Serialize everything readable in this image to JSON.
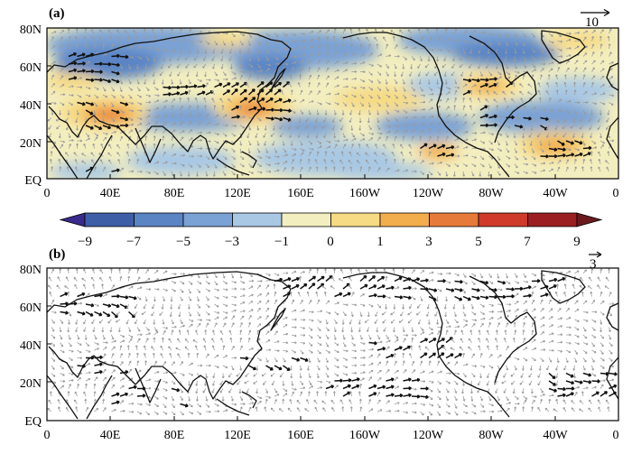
{
  "panels": [
    {
      "id": "a",
      "label": "(a)",
      "ref_vector": "10",
      "filled": true,
      "y_ticks": [
        "80N",
        "60N",
        "40N",
        "20N",
        "EQ"
      ],
      "x_ticks": [
        "0",
        "40E",
        "80E",
        "120E",
        "160E",
        "160W",
        "120W",
        "80W",
        "40W",
        "0"
      ]
    },
    {
      "id": "b",
      "label": "(b)",
      "ref_vector": "3",
      "filled": false,
      "y_ticks": [
        "80N",
        "60N",
        "40N",
        "20N",
        "EQ"
      ],
      "x_ticks": [
        "0",
        "40E",
        "80E",
        "120E",
        "160E",
        "160W",
        "120W",
        "80W",
        "40W",
        "0"
      ]
    }
  ],
  "colorbar": {
    "labels": [
      "−9",
      "−7",
      "−5",
      "−3",
      "−1",
      "0",
      "1",
      "3",
      "5",
      "7",
      "9"
    ],
    "colors": [
      "#3a2a8c",
      "#3f5ea8",
      "#5a84c4",
      "#7ba2d4",
      "#a9c8e4",
      "#f3eebf",
      "#f6da84",
      "#f2ad4c",
      "#e67a3a",
      "#cf3a2a",
      "#9b1f22",
      "#6a1a1e"
    ]
  },
  "colors": {
    "ocean_neutral": "#f3eebf",
    "coast": "#111111",
    "vector_gray": "#9a9a9a",
    "vector_black": "#111111"
  }
}
